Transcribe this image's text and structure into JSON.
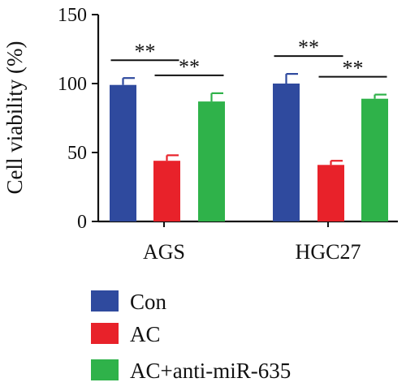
{
  "chart_data": {
    "type": "bar",
    "title": "",
    "xlabel": "",
    "ylabel": "Cell viability (%)",
    "ylim": [
      0,
      150
    ],
    "yticks": [
      "0",
      "50",
      "100",
      "150"
    ],
    "categories": [
      "AGS",
      "HGC27"
    ],
    "series": [
      {
        "name": "Con",
        "color": "#2f4a9e",
        "values": [
          99,
          100
        ],
        "errors": [
          5,
          7
        ]
      },
      {
        "name": "AC",
        "color": "#e8222a",
        "values": [
          44,
          41
        ],
        "errors": [
          4,
          3
        ]
      },
      {
        "name": "AC+anti-miR-635",
        "color": "#2fb24a",
        "values": [
          87,
          89
        ],
        "errors": [
          6,
          3
        ]
      }
    ],
    "significance": [
      {
        "category": 0,
        "from_series": 0,
        "to_series": 1,
        "label": "**"
      },
      {
        "category": 0,
        "from_series": 1,
        "to_series": 2,
        "label": "**"
      },
      {
        "category": 1,
        "from_series": 0,
        "to_series": 1,
        "label": "**"
      },
      {
        "category": 1,
        "from_series": 1,
        "to_series": 2,
        "label": "**"
      }
    ],
    "legend_position": "bottom-left",
    "grid": false
  }
}
